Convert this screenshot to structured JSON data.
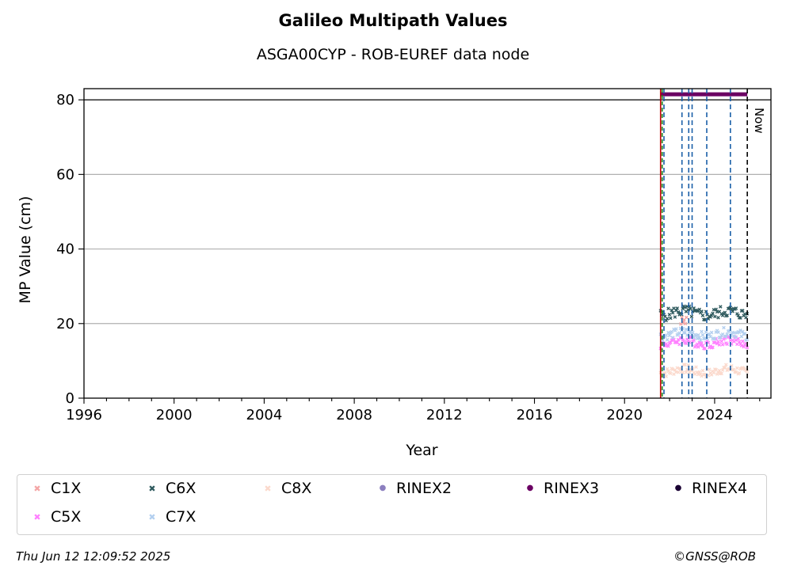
{
  "title": "Galileo Multipath Values",
  "subtitle": "ASGA00CYP - ROB-EUREF data node",
  "footer": {
    "timestamp": "Thu Jun 12 12:09:52 2025",
    "credit": "©GNSS@ROB"
  },
  "chart_data": {
    "type": "scatter",
    "xlabel": "Year",
    "ylabel": "MP Value (cm)",
    "xlim": [
      1996,
      2026.5
    ],
    "ylim": [
      0,
      83
    ],
    "x_ticks": [
      "1996",
      "2000",
      "2004",
      "2008",
      "2012",
      "2016",
      "2020",
      "2024"
    ],
    "y_ticks": [
      "0",
      "20",
      "40",
      "60",
      "80"
    ],
    "grid": "horizontal",
    "legend_position": "bottom",
    "threshold_line": 80,
    "now_label": "Now",
    "now_x": 2025.45,
    "start_marker_x": 2021.6,
    "event_lines_x": [
      2021.75,
      2022.55,
      2022.85,
      2023.0,
      2023.65,
      2024.7
    ],
    "series": [
      {
        "name": "C1X",
        "marker": "x",
        "color": "#f4a6a6",
        "x_range": [
          2022.5,
          2022.75
        ],
        "value": 20.0
      },
      {
        "name": "C5X",
        "marker": "x",
        "color": "#ff80ff",
        "x_range": [
          2021.6,
          2025.45
        ],
        "value": 15.0
      },
      {
        "name": "C6X",
        "marker": "x",
        "color": "#2f5a5e",
        "x_range": [
          2021.6,
          2025.45
        ],
        "value": 22.8
      },
      {
        "name": "C7X",
        "marker": "x",
        "color": "#b3cfef",
        "x_range": [
          2021.6,
          2025.45
        ],
        "value": 17.2
      },
      {
        "name": "C8X",
        "marker": "x",
        "color": "#fbd9cc",
        "x_range": [
          2021.6,
          2025.45
        ],
        "value": 7.3
      },
      {
        "name": "RINEX2",
        "marker": "dot",
        "color": "#8c7fbf",
        "x_range": [],
        "value": null
      },
      {
        "name": "RINEX3",
        "marker": "dot",
        "color": "#6b0063",
        "x_range": [
          2021.6,
          2025.45
        ],
        "value": 81.5
      },
      {
        "name": "RINEX4",
        "marker": "dot",
        "color": "#1a0033",
        "x_range": [],
        "value": null
      }
    ]
  }
}
